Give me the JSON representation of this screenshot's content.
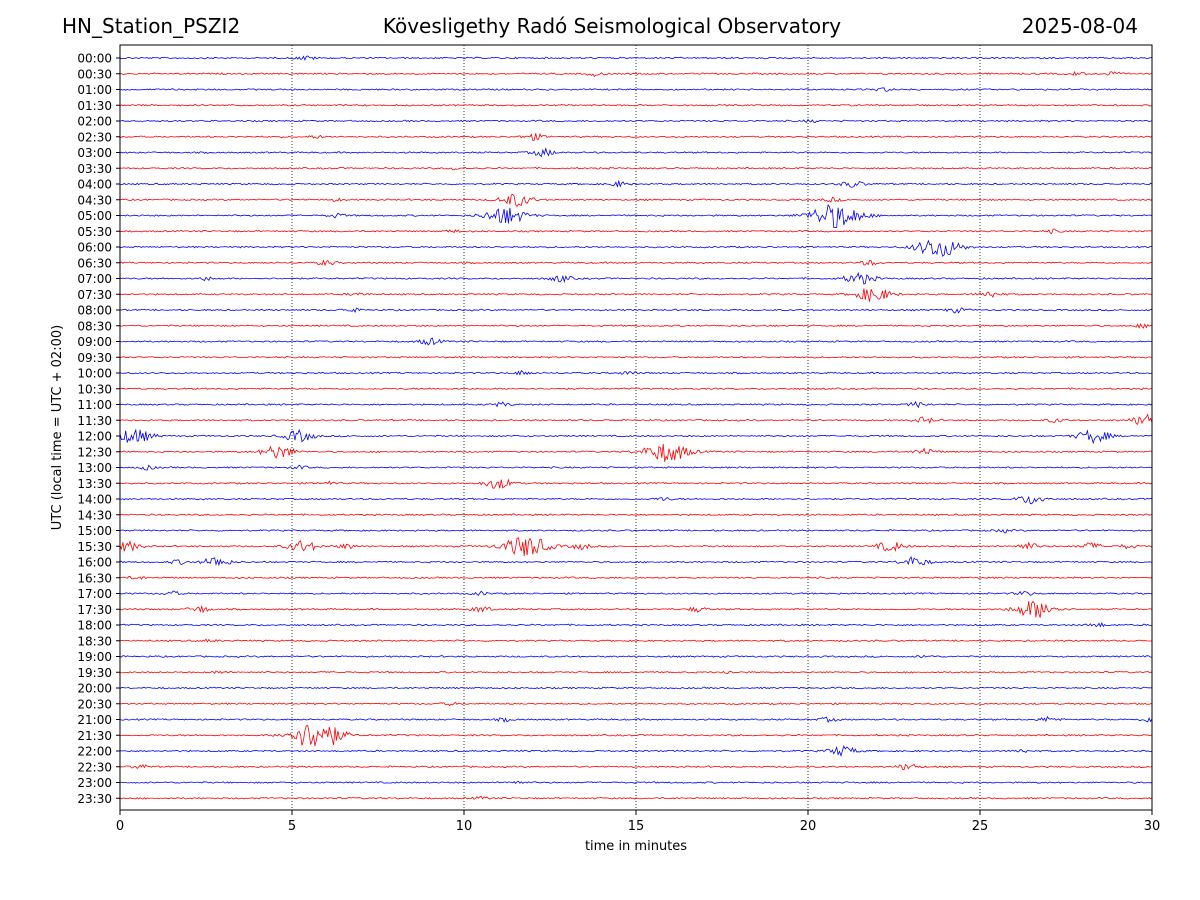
{
  "header": {
    "station": "HN_Station_PSZI2",
    "observatory": "Kövesligethy Radó Seismological Observatory",
    "date": "2025-08-04"
  },
  "chart_data": {
    "type": "line",
    "subtype": "helicorder",
    "xlabel": "time in minutes",
    "ylabel": "UTC (local time = UTC + 02:00)",
    "xlim": [
      0,
      30
    ],
    "xticks": [
      "0",
      "5",
      "10",
      "15",
      "20",
      "25",
      "30"
    ],
    "grid_x": [
      5,
      10,
      15,
      20,
      25
    ],
    "colors": [
      "#0000ff",
      "#ff0000"
    ],
    "rows": [
      {
        "label": "00:00",
        "events": [
          [
            5.4,
            0.5
          ]
        ]
      },
      {
        "label": "00:30",
        "events": [
          [
            13.8,
            0.5
          ],
          [
            27.8,
            0.4
          ],
          [
            28.8,
            0.5
          ]
        ]
      },
      {
        "label": "01:00",
        "events": [
          [
            22.2,
            0.4
          ]
        ]
      },
      {
        "label": "01:30",
        "events": []
      },
      {
        "label": "02:00",
        "events": [
          [
            20.1,
            0.3
          ]
        ]
      },
      {
        "label": "02:30",
        "events": [
          [
            12.0,
            0.8
          ],
          [
            5.7,
            0.3
          ]
        ]
      },
      {
        "label": "03:00",
        "events": [
          [
            12.3,
            0.9
          ]
        ]
      },
      {
        "label": "03:30",
        "events": [
          [
            9.8,
            0.4
          ]
        ]
      },
      {
        "label": "04:00",
        "events": [
          [
            14.5,
            0.6
          ],
          [
            21.3,
            0.8
          ]
        ]
      },
      {
        "label": "04:30",
        "events": [
          [
            11.5,
            1.6
          ],
          [
            6.3,
            0.3
          ],
          [
            20.7,
            0.5
          ]
        ]
      },
      {
        "label": "05:00",
        "events": [
          [
            11.2,
            2.2
          ],
          [
            6.3,
            0.5
          ],
          [
            20.8,
            3.0
          ]
        ]
      },
      {
        "label": "05:30",
        "events": [
          [
            9.7,
            0.3
          ],
          [
            27.1,
            0.4
          ]
        ]
      },
      {
        "label": "06:00",
        "events": [
          [
            23.8,
            2.5
          ]
        ]
      },
      {
        "label": "06:30",
        "events": [
          [
            6.0,
            0.6
          ],
          [
            21.8,
            0.6
          ]
        ]
      },
      {
        "label": "07:00",
        "events": [
          [
            12.8,
            0.8
          ],
          [
            21.5,
            1.4
          ],
          [
            2.5,
            0.4
          ]
        ]
      },
      {
        "label": "07:30",
        "events": [
          [
            21.9,
            1.8
          ],
          [
            25.3,
            0.8
          ],
          [
            6.9,
            0.4
          ]
        ]
      },
      {
        "label": "08:00",
        "events": [
          [
            6.7,
            0.5
          ],
          [
            24.3,
            0.6
          ]
        ]
      },
      {
        "label": "08:30",
        "events": [
          [
            29.7,
            0.4
          ]
        ]
      },
      {
        "label": "09:00",
        "events": [
          [
            9.0,
            0.8
          ]
        ]
      },
      {
        "label": "09:30",
        "events": []
      },
      {
        "label": "10:00",
        "events": [
          [
            11.7,
            0.5
          ],
          [
            14.8,
            0.4
          ]
        ]
      },
      {
        "label": "10:30",
        "events": []
      },
      {
        "label": "11:00",
        "events": [
          [
            11.1,
            0.5
          ],
          [
            23.2,
            0.6
          ]
        ]
      },
      {
        "label": "11:30",
        "events": [
          [
            23.4,
            0.7
          ],
          [
            27.2,
            0.5
          ],
          [
            29.9,
            1.6
          ]
        ]
      },
      {
        "label": "12:00",
        "events": [
          [
            0.4,
            1.8
          ],
          [
            5.2,
            1.4
          ],
          [
            28.3,
            1.6
          ]
        ]
      },
      {
        "label": "12:30",
        "events": [
          [
            4.6,
            1.6
          ],
          [
            15.9,
            2.5
          ],
          [
            23.4,
            0.8
          ]
        ]
      },
      {
        "label": "13:00",
        "events": [
          [
            0.8,
            0.5
          ],
          [
            5.2,
            0.4
          ]
        ]
      },
      {
        "label": "13:30",
        "events": [
          [
            11.0,
            1.3
          ],
          [
            6.1,
            0.4
          ]
        ]
      },
      {
        "label": "14:00",
        "events": [
          [
            26.5,
            1.2
          ],
          [
            15.8,
            0.4
          ]
        ]
      },
      {
        "label": "14:30",
        "events": []
      },
      {
        "label": "15:00",
        "events": [
          [
            25.7,
            0.4
          ]
        ]
      },
      {
        "label": "15:30",
        "events": [
          [
            0.2,
            1.2
          ],
          [
            5.3,
            1.4
          ],
          [
            6.6,
            0.6
          ],
          [
            11.8,
            2.6
          ],
          [
            13.4,
            0.7
          ],
          [
            22.4,
            1.2
          ],
          [
            26.4,
            0.8
          ],
          [
            28.2,
            0.8
          ],
          [
            29.3,
            0.5
          ]
        ]
      },
      {
        "label": "16:00",
        "events": [
          [
            1.7,
            0.5
          ],
          [
            2.8,
            1.2
          ],
          [
            23.1,
            1.2
          ]
        ]
      },
      {
        "label": "16:30",
        "events": [
          [
            0.5,
            0.4
          ]
        ]
      },
      {
        "label": "17:00",
        "events": [
          [
            1.5,
            0.5
          ],
          [
            10.5,
            0.4
          ],
          [
            26.3,
            0.5
          ]
        ]
      },
      {
        "label": "17:30",
        "events": [
          [
            2.3,
            0.8
          ],
          [
            10.5,
            0.7
          ],
          [
            16.8,
            0.6
          ],
          [
            26.6,
            2.2
          ]
        ]
      },
      {
        "label": "18:00",
        "events": [
          [
            28.4,
            0.5
          ]
        ]
      },
      {
        "label": "18:30",
        "events": [
          [
            2.6,
            0.3
          ]
        ]
      },
      {
        "label": "19:00",
        "events": [
          [
            23.4,
            0.3
          ]
        ]
      },
      {
        "label": "19:30",
        "events": [
          [
            2.9,
            0.3
          ],
          [
            17.7,
            0.3
          ]
        ]
      },
      {
        "label": "20:00",
        "events": []
      },
      {
        "label": "20:30",
        "events": [
          [
            9.6,
            0.3
          ]
        ]
      },
      {
        "label": "21:00",
        "events": [
          [
            20.6,
            0.5
          ],
          [
            27.0,
            0.6
          ],
          [
            11.2,
            0.4
          ],
          [
            29.9,
            0.5
          ]
        ]
      },
      {
        "label": "21:30",
        "events": [
          [
            5.5,
            2.5
          ],
          [
            6.0,
            2.0
          ]
        ]
      },
      {
        "label": "22:00",
        "events": [
          [
            21.0,
            1.2
          ],
          [
            26.2,
            0.4
          ]
        ]
      },
      {
        "label": "22:30",
        "events": [
          [
            0.6,
            0.5
          ],
          [
            22.9,
            0.8
          ]
        ]
      },
      {
        "label": "23:00",
        "events": [
          [
            11.5,
            0.4
          ]
        ]
      },
      {
        "label": "23:30",
        "events": [
          [
            10.5,
            0.3
          ]
        ]
      }
    ]
  }
}
